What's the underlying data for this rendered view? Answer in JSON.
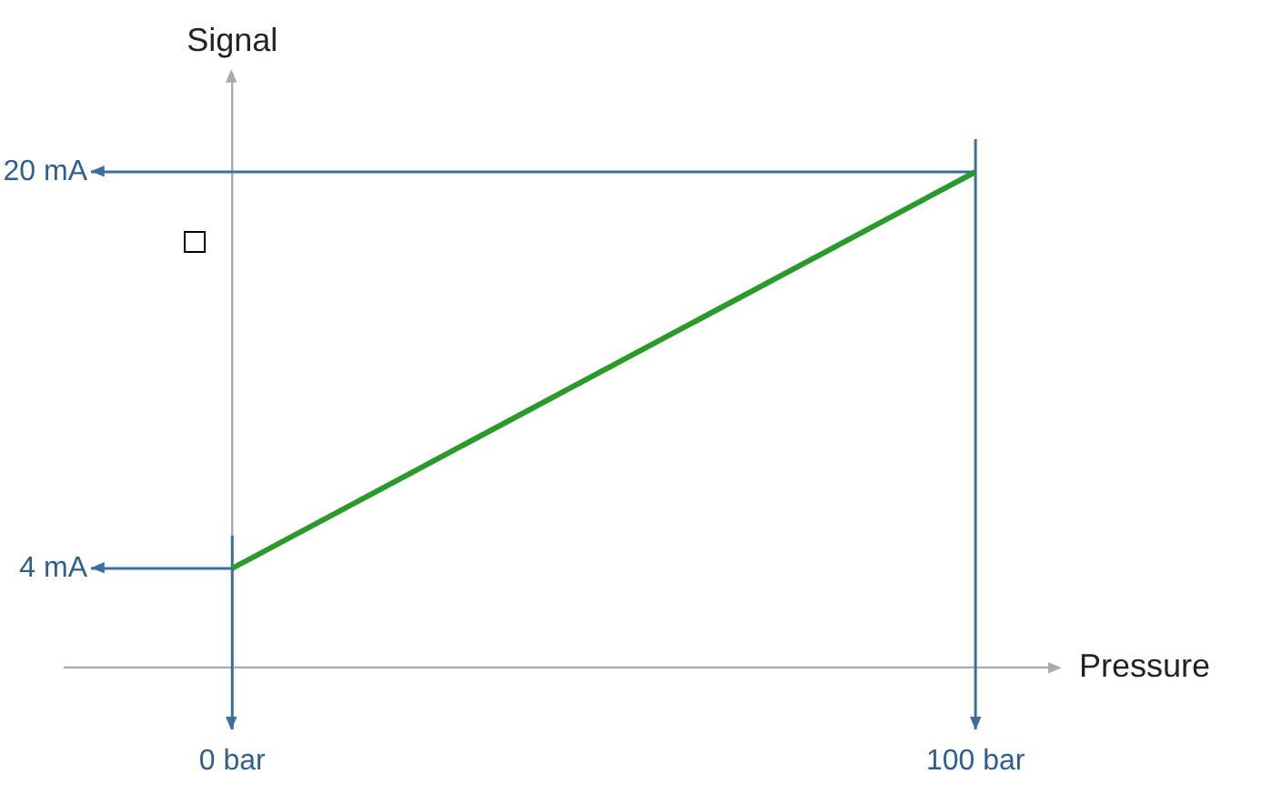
{
  "chart_data": {
    "type": "line",
    "xlabel": "Pressure",
    "ylabel": "Signal",
    "x": [
      0,
      100
    ],
    "series": [
      {
        "color": "#2a9a2a",
        "values": [
          4,
          20
        ]
      }
    ],
    "xlim": [
      -19,
      111
    ],
    "ylim": [
      -2.5,
      24
    ],
    "xticks": [
      {
        "value": 0,
        "label": "0 bar"
      },
      {
        "value": 100,
        "label": "100 bar"
      }
    ],
    "yticks": [
      {
        "value": 4,
        "label": "4 mA"
      },
      {
        "value": 20,
        "label": "20 mA"
      }
    ],
    "ref_lines": [
      {
        "axis": "x",
        "value": 0,
        "color": "#3b6fa0"
      },
      {
        "axis": "x",
        "value": 100,
        "color": "#3b6fa0"
      },
      {
        "axis": "y",
        "value": 4,
        "color": "#3b6fa0"
      },
      {
        "axis": "y",
        "value": 20,
        "color": "#3b6fa0"
      }
    ],
    "grid": false,
    "legend": false,
    "marker": "none",
    "line_style": "solid"
  }
}
